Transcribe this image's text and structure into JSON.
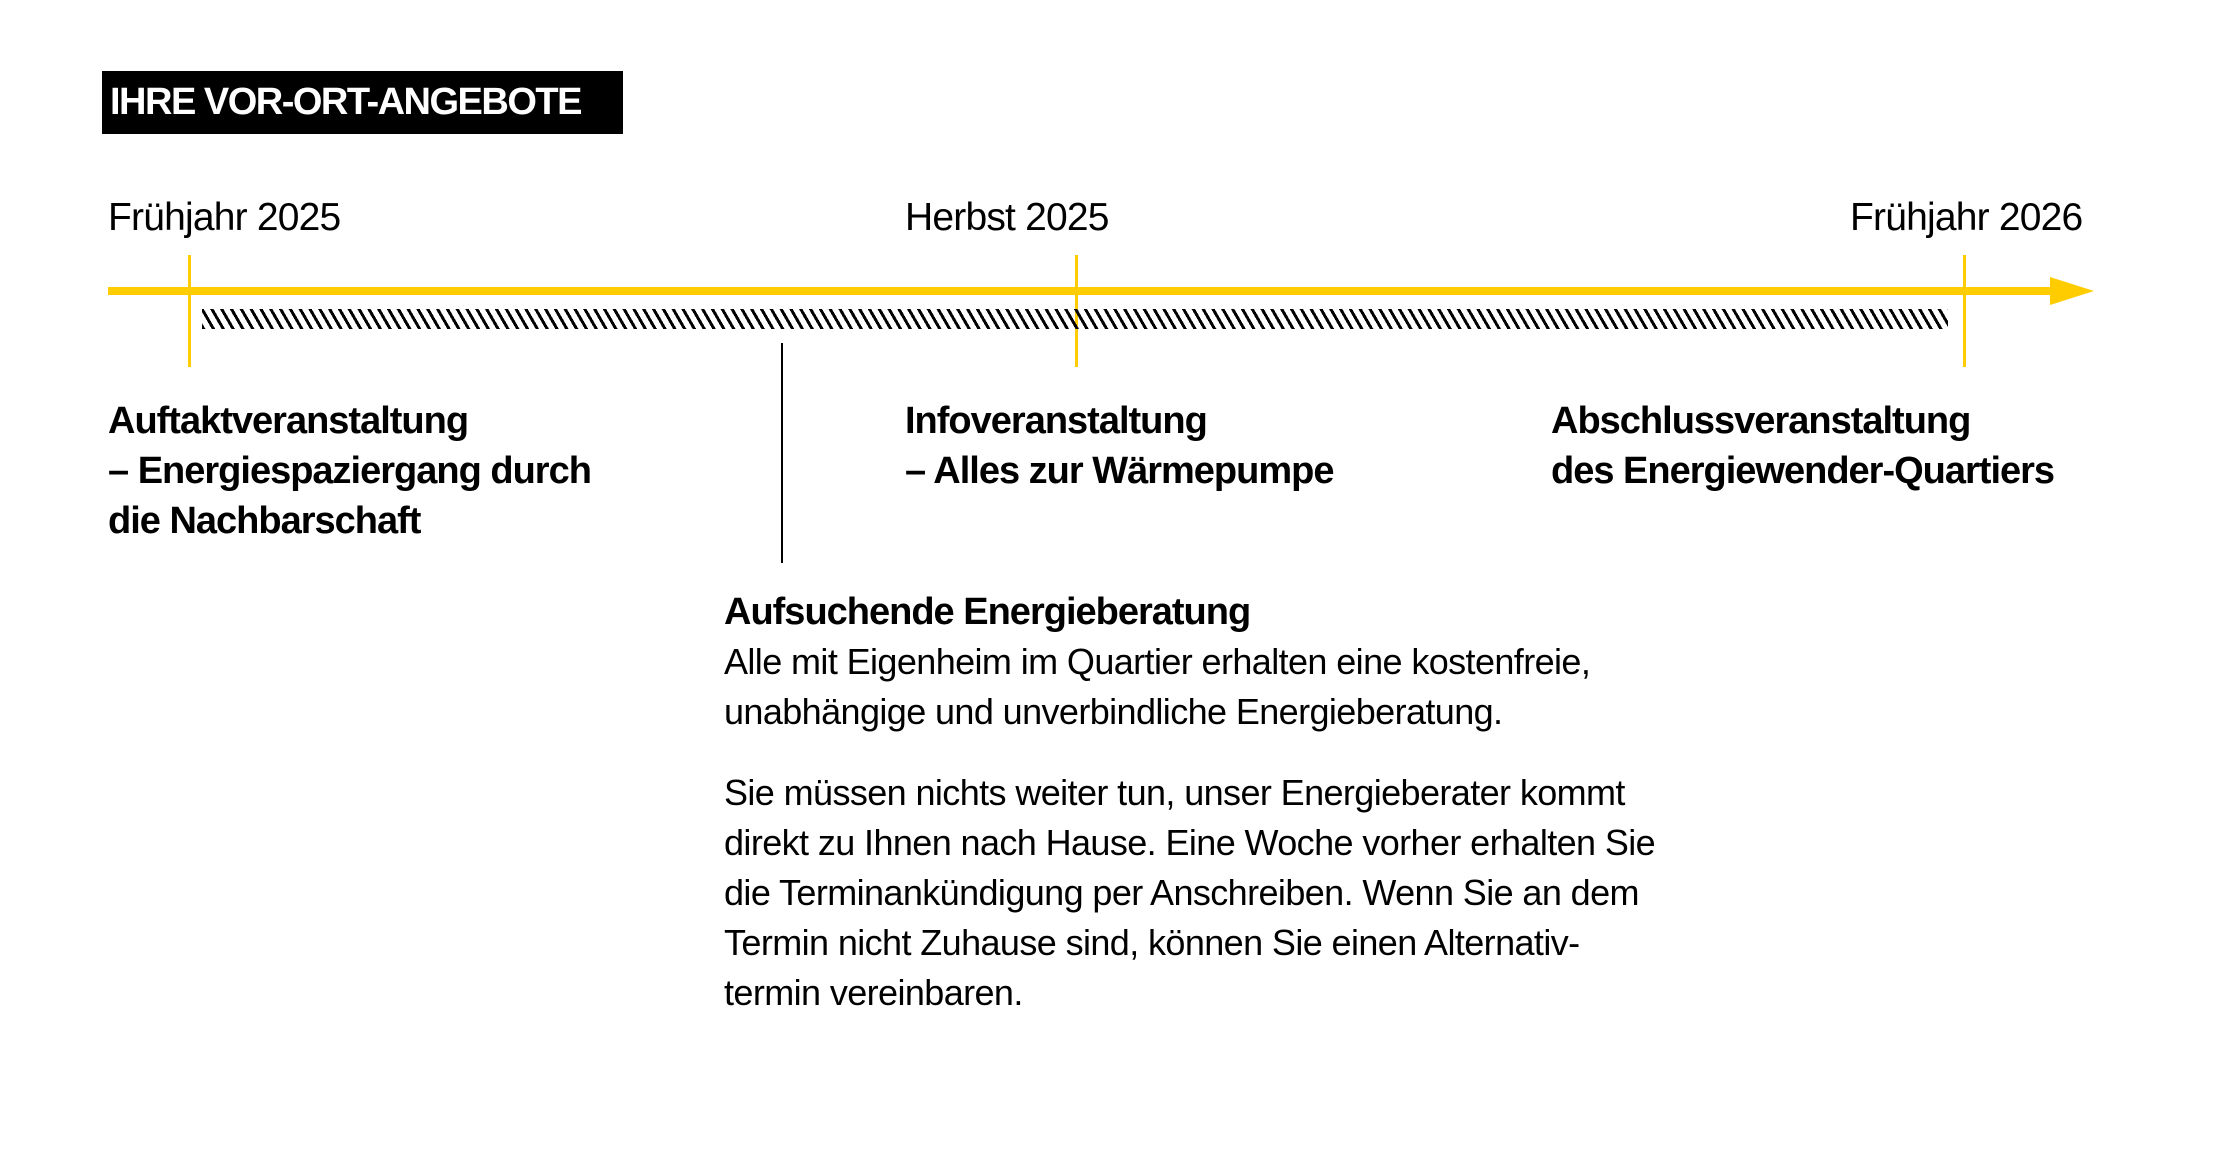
{
  "title": "IHRE VOR-ORT-ANGEBOTE",
  "colors": {
    "accent": "#FFCC00",
    "text": "#000000",
    "title_bg": "#000000"
  },
  "timeline": {
    "dates": [
      "Frühjahr 2025",
      "Herbst 2025",
      "Frühjahr 2026"
    ]
  },
  "events": [
    {
      "lines": [
        "Auftaktveranstaltung",
        "– Energiespaziergang durch",
        "die Nachbarschaft"
      ]
    },
    {
      "lines": [
        "Infoveranstaltung",
        "– Alles zur Wärmepumpe"
      ]
    },
    {
      "lines": [
        "Abschlussveranstaltung",
        "des Energiewender-Quartiers"
      ]
    }
  ],
  "consulting": {
    "heading": "Aufsuchende Energieberatung",
    "paragraph1": [
      "Alle mit Eigenheim im Quartier erhalten eine kostenfreie,",
      "unabhängige und unverbindliche Energieberatung."
    ],
    "paragraph2": [
      "Sie müssen nichts weiter tun, unser Energieberater kommt",
      "direkt zu Ihnen nach Hause. Eine Woche vorher erhalten Sie",
      "die Terminankündigung per Anschreiben. Wenn Sie an dem",
      "Termin nicht Zuhause sind, können Sie einen Alternativ-",
      "termin vereinbaren."
    ]
  }
}
